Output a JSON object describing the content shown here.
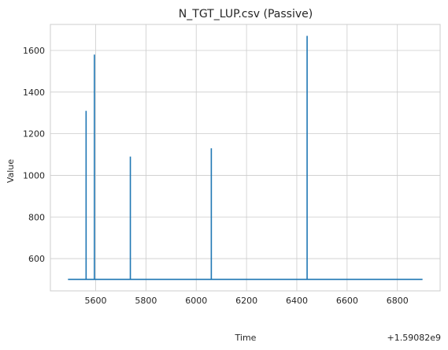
{
  "chart_data": {
    "type": "line",
    "title": "N_TGT_LUP.csv (Passive)",
    "xlabel": "Time",
    "ylabel": "Value",
    "x_offset_label": "+1.59082e9",
    "xlim": [
      5420,
      6970
    ],
    "ylim": [
      445,
      1725
    ],
    "xticks": [
      5600,
      5800,
      6000,
      6200,
      6400,
      6600,
      6800
    ],
    "yticks": [
      600,
      800,
      1000,
      1200,
      1400,
      1600
    ],
    "xtick_labels": [
      "5600",
      "5800",
      "6000",
      "6200",
      "6400",
      "6600",
      "6800"
    ],
    "ytick_labels": [
      "600",
      "800",
      "1000",
      "1200",
      "1400",
      "1600"
    ],
    "grid": true,
    "color": "#1f77b4",
    "series": [
      {
        "x": [
          5490,
          5562,
          5562,
          5562,
          5595,
          5595,
          5595,
          5738,
          5738,
          5738,
          6060,
          6060,
          6060,
          6441,
          6441,
          6441,
          6900
        ],
        "y": [
          500,
          500,
          1310,
          500,
          500,
          1580,
          500,
          500,
          1090,
          500,
          500,
          1130,
          500,
          500,
          1670,
          500,
          500
        ]
      }
    ]
  }
}
